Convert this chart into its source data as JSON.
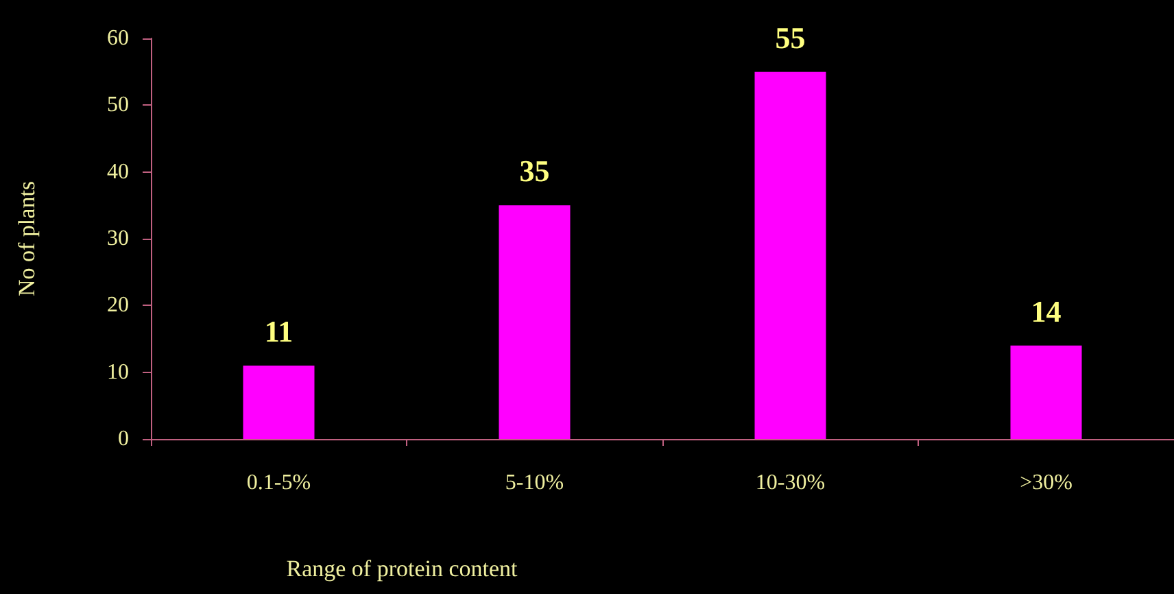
{
  "chart_data": {
    "type": "bar",
    "xlabel": "Range of protein content",
    "ylabel": "No of plants",
    "categories": [
      "0.1-5%",
      "5-10%",
      "10-30%",
      ">30%"
    ],
    "values": [
      11,
      35,
      55,
      14
    ],
    "color": "#ff00ff",
    "ylim": [
      0,
      60
    ],
    "yticks": [
      0,
      10,
      20,
      30,
      40,
      50,
      60
    ],
    "grid": false,
    "data_labels": true
  }
}
